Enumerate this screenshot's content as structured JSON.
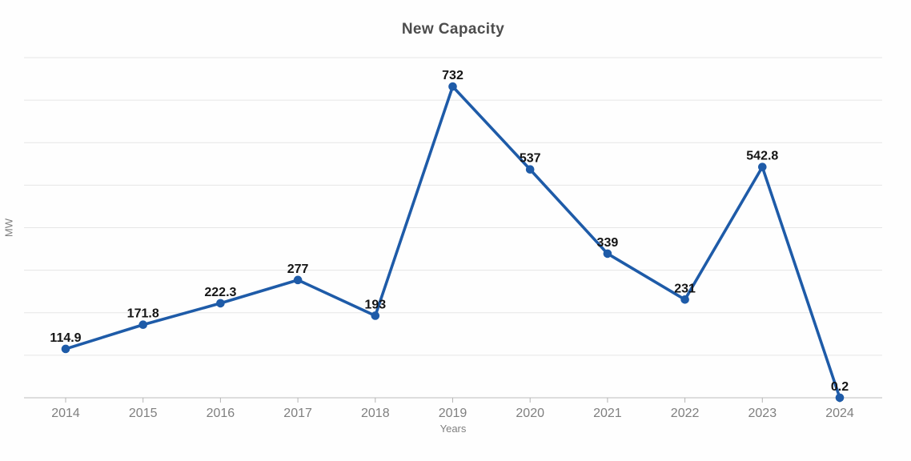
{
  "title": "New Capacity",
  "colors": {
    "line": "#1e5ba8",
    "marker": "#1e5ba8",
    "gridline": "#e6e6e6",
    "axis_line": "#c9c9c9",
    "tick": "#b5b5b5",
    "tick_label": "#7f7f7f",
    "data_label": "#141414",
    "title": "#4d4d4d"
  },
  "chart_data": {
    "type": "line",
    "title": "New Capacity",
    "xlabel": "Years",
    "ylabel": "MW",
    "categories": [
      "2014",
      "2015",
      "2016",
      "2017",
      "2018",
      "2019",
      "2020",
      "2021",
      "2022",
      "2023",
      "2024"
    ],
    "series": [
      {
        "name": "New Capacity",
        "values": [
          114.9,
          171.8,
          222.3,
          277,
          193,
          732,
          537,
          339,
          231,
          542.8,
          0.2
        ]
      }
    ],
    "data_labels": [
      "114.9",
      "171.8",
      "222.3",
      "277",
      "193",
      "732",
      "537",
      "339",
      "231",
      "542.8",
      "0.2"
    ],
    "ylim": [
      0,
      800
    ],
    "grid_interval": 100,
    "grid": true,
    "y_tick_labels_shown": false,
    "legend_position": "none"
  }
}
